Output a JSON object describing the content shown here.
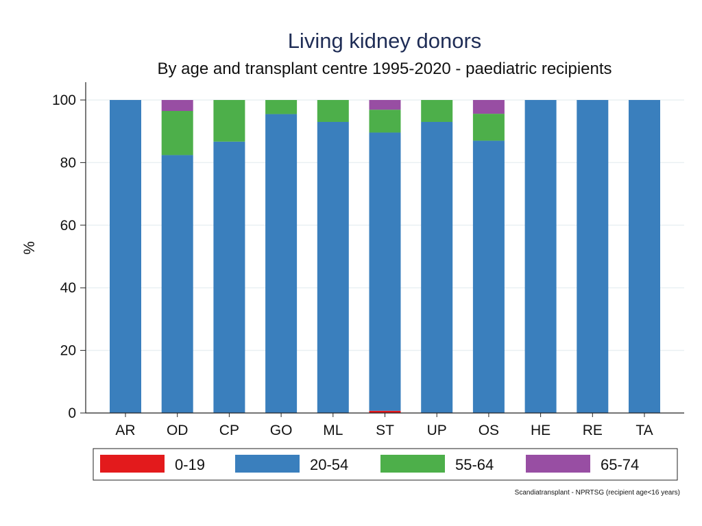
{
  "chart_data": {
    "type": "bar",
    "stacked": true,
    "title": "Living kidney donors",
    "subtitle": "By age and transplant centre 1995-2020 - paediatric recipients",
    "xlabel": "",
    "ylabel": "%",
    "ylim": [
      0,
      100
    ],
    "yticks": [
      0,
      20,
      40,
      60,
      80,
      100
    ],
    "grid": true,
    "legend_position": "bottom",
    "categories": [
      "AR",
      "OD",
      "CP",
      "GO",
      "ML",
      "ST",
      "UP",
      "OS",
      "HE",
      "RE",
      "TA"
    ],
    "series": [
      {
        "name": "0-19",
        "color": "#e31a1c",
        "values": [
          0,
          0,
          0,
          0,
          0,
          0.7,
          0,
          0,
          0,
          0,
          0
        ]
      },
      {
        "name": "20-54",
        "color": "#3a7fbd",
        "values": [
          100,
          82.4,
          86.7,
          95.5,
          93.0,
          88.9,
          93.0,
          87.0,
          100,
          100,
          100
        ]
      },
      {
        "name": "55-64",
        "color": "#4daf4a",
        "values": [
          0,
          14.1,
          13.3,
          4.5,
          7.0,
          7.3,
          7.0,
          8.6,
          0,
          0,
          0
        ]
      },
      {
        "name": "65-74",
        "color": "#984ea3",
        "values": [
          0,
          3.5,
          0,
          0,
          0,
          3.1,
          0,
          4.4,
          0,
          0,
          0
        ]
      }
    ],
    "source_note": "Scandiatransplant - NPRTSG (recipient age<16 years)"
  }
}
